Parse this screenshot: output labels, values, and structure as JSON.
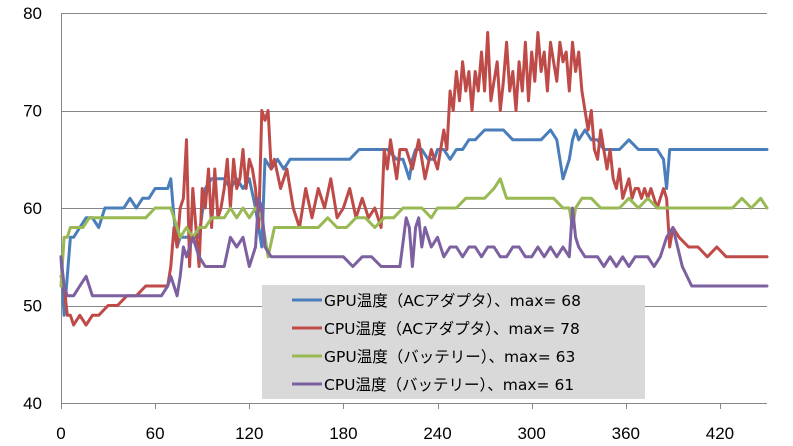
{
  "chart_data": {
    "type": "line",
    "title": "",
    "xlabel": "",
    "ylabel": "",
    "xlim": [
      0,
      450
    ],
    "ylim": [
      40,
      80
    ],
    "x_ticks": [
      0,
      60,
      120,
      180,
      240,
      300,
      360,
      420
    ],
    "y_ticks": [
      40,
      50,
      60,
      70,
      80
    ],
    "grid": "horizontal",
    "legend_position": "bottom-center",
    "series": [
      {
        "name": "GPU温度（ACアダプタ）、max=  68",
        "color": "#4a7ebb",
        "x": [
          0,
          2,
          4,
          6,
          8,
          12,
          16,
          20,
          24,
          28,
          32,
          36,
          40,
          44,
          48,
          52,
          56,
          60,
          64,
          68,
          70,
          72,
          74,
          76,
          80,
          84,
          88,
          92,
          96,
          100,
          104,
          108,
          112,
          116,
          120,
          124,
          126,
          128,
          130,
          134,
          138,
          142,
          146,
          150,
          154,
          160,
          166,
          172,
          178,
          184,
          190,
          196,
          202,
          208,
          214,
          218,
          220,
          222,
          224,
          226,
          230,
          234,
          238,
          240,
          244,
          248,
          252,
          256,
          260,
          264,
          270,
          276,
          282,
          288,
          294,
          300,
          306,
          312,
          316,
          318,
          320,
          322,
          324,
          326,
          328,
          330,
          334,
          338,
          342,
          346,
          350,
          356,
          362,
          368,
          374,
          380,
          384,
          386,
          388,
          392,
          398,
          404,
          410,
          416,
          422,
          428,
          434,
          440,
          446,
          450
        ],
        "values": [
          55,
          49,
          53,
          57,
          57,
          58,
          59,
          59,
          58,
          60,
          60,
          60,
          60,
          61,
          60,
          61,
          61,
          62,
          62,
          62,
          63,
          59,
          56,
          57,
          57,
          57,
          57,
          62,
          63,
          63,
          63,
          62,
          63,
          62,
          63,
          60,
          58,
          56,
          65,
          64,
          65,
          64,
          65,
          65,
          65,
          65,
          65,
          65,
          65,
          65,
          66,
          66,
          66,
          66,
          65,
          65,
          64,
          63,
          65,
          66,
          66,
          65,
          65,
          66,
          66,
          65,
          66,
          66,
          67,
          67,
          68,
          68,
          68,
          67,
          67,
          67,
          67,
          68,
          67,
          65,
          63,
          64,
          65,
          67,
          68,
          67,
          68,
          67,
          67,
          66,
          66,
          66,
          67,
          66,
          66,
          66,
          65,
          62,
          66,
          66,
          66,
          66,
          66,
          66,
          66,
          66,
          66,
          66,
          66,
          66
        ]
      },
      {
        "name": "CPU温度（ACアダプタ）、max=  78",
        "color": "#be4b48",
        "x": [
          0,
          2,
          4,
          6,
          8,
          12,
          16,
          20,
          24,
          30,
          36,
          42,
          48,
          54,
          60,
          64,
          68,
          70,
          72,
          74,
          76,
          78,
          80,
          82,
          84,
          86,
          88,
          90,
          92,
          94,
          96,
          98,
          100,
          102,
          104,
          106,
          108,
          110,
          112,
          114,
          116,
          118,
          120,
          122,
          124,
          126,
          128,
          130,
          132,
          134,
          136,
          140,
          144,
          148,
          152,
          156,
          160,
          164,
          168,
          172,
          176,
          180,
          184,
          188,
          192,
          196,
          200,
          204,
          206,
          208,
          210,
          212,
          214,
          216,
          220,
          224,
          228,
          232,
          236,
          240,
          244,
          246,
          248,
          250,
          252,
          254,
          256,
          258,
          260,
          262,
          264,
          266,
          268,
          270,
          272,
          274,
          276,
          278,
          280,
          282,
          284,
          286,
          288,
          290,
          292,
          294,
          296,
          298,
          300,
          302,
          304,
          306,
          308,
          310,
          312,
          314,
          316,
          318,
          320,
          322,
          324,
          326,
          328,
          330,
          332,
          334,
          336,
          338,
          340,
          342,
          344,
          346,
          348,
          350,
          352,
          354,
          356,
          358,
          360,
          362,
          364,
          366,
          368,
          370,
          372,
          374,
          376,
          378,
          380,
          382,
          384,
          386,
          388,
          390,
          394,
          400,
          406,
          412,
          418,
          424,
          430,
          436,
          442,
          450
        ],
        "values": [
          53,
          52,
          49,
          49,
          48,
          49,
          48,
          49,
          49,
          50,
          50,
          51,
          51,
          52,
          52,
          52,
          52,
          54,
          58,
          56,
          60,
          61,
          67,
          54,
          62,
          58,
          54,
          62,
          60,
          64,
          58,
          64,
          59,
          60,
          62,
          65,
          60,
          65,
          62,
          63,
          66,
          62,
          65,
          64,
          62,
          58,
          70,
          69,
          70,
          64,
          65,
          62,
          64,
          60,
          58,
          62,
          59,
          62,
          60,
          63,
          59,
          60,
          62,
          59,
          61,
          59,
          60,
          58,
          66,
          64,
          67,
          65,
          63,
          66,
          66,
          64,
          67,
          63,
          66,
          64,
          68,
          66,
          72,
          70,
          74,
          71,
          75,
          72,
          74,
          70,
          74,
          72,
          76,
          72,
          78,
          71,
          73,
          75,
          70,
          73,
          77,
          72,
          74,
          70,
          75,
          72,
          77,
          71,
          76,
          73,
          78,
          74,
          76,
          72,
          77,
          75,
          73,
          77,
          75,
          76,
          72,
          77,
          74,
          76,
          72,
          70,
          68,
          70,
          66,
          65,
          68,
          66,
          64,
          66,
          63,
          62,
          64,
          61,
          62,
          63,
          61,
          62,
          62,
          61,
          62,
          61,
          62,
          61,
          60,
          61,
          62,
          61,
          56,
          58,
          57,
          56,
          56,
          55,
          56,
          55,
          55,
          55,
          55,
          55
        ]
      },
      {
        "name": "GPU温度（バッテリー）、max=  63",
        "color": "#98b954",
        "x": [
          0,
          2,
          4,
          6,
          10,
          14,
          18,
          24,
          30,
          36,
          42,
          48,
          54,
          60,
          66,
          70,
          72,
          74,
          76,
          80,
          84,
          88,
          92,
          96,
          100,
          104,
          108,
          112,
          116,
          120,
          124,
          128,
          130,
          132,
          136,
          140,
          146,
          152,
          158,
          164,
          170,
          176,
          182,
          188,
          194,
          200,
          206,
          212,
          218,
          224,
          230,
          236,
          240,
          246,
          252,
          258,
          264,
          270,
          276,
          280,
          282,
          284,
          286,
          290,
          296,
          302,
          308,
          314,
          320,
          324,
          326,
          328,
          332,
          338,
          344,
          350,
          356,
          362,
          368,
          374,
          380,
          386,
          392,
          398,
          404,
          410,
          416,
          422,
          428,
          434,
          440,
          446,
          450
        ],
        "values": [
          52,
          57,
          57,
          58,
          58,
          58,
          59,
          59,
          59,
          59,
          59,
          59,
          59,
          60,
          60,
          60,
          59,
          58,
          57,
          58,
          57,
          58,
          58,
          59,
          59,
          59,
          60,
          59,
          60,
          59,
          60,
          59,
          57,
          55,
          58,
          58,
          58,
          58,
          58,
          58,
          59,
          58,
          58,
          59,
          59,
          58,
          59,
          59,
          60,
          60,
          60,
          59,
          60,
          60,
          60,
          61,
          61,
          61,
          62,
          63,
          62,
          61,
          61,
          61,
          61,
          61,
          61,
          61,
          60,
          60,
          58,
          60,
          61,
          61,
          60,
          60,
          60,
          61,
          60,
          61,
          60,
          60,
          60,
          60,
          60,
          60,
          60,
          60,
          60,
          61,
          60,
          61,
          60
        ]
      },
      {
        "name": "CPU温度（バッテリー）、max=  61",
        "color": "#7d60a0",
        "x": [
          0,
          2,
          4,
          6,
          8,
          12,
          16,
          20,
          24,
          30,
          36,
          42,
          48,
          54,
          60,
          64,
          68,
          70,
          72,
          74,
          76,
          78,
          80,
          84,
          88,
          92,
          96,
          100,
          104,
          108,
          112,
          116,
          120,
          124,
          126,
          128,
          130,
          134,
          138,
          142,
          146,
          150,
          156,
          162,
          168,
          174,
          180,
          186,
          192,
          198,
          204,
          210,
          216,
          220,
          222,
          224,
          226,
          228,
          230,
          232,
          236,
          240,
          244,
          248,
          252,
          256,
          260,
          264,
          268,
          272,
          276,
          280,
          284,
          288,
          292,
          296,
          300,
          304,
          308,
          312,
          316,
          320,
          324,
          326,
          328,
          330,
          334,
          338,
          342,
          346,
          350,
          354,
          358,
          362,
          366,
          370,
          374,
          378,
          382,
          386,
          390,
          396,
          402,
          408,
          414,
          420,
          426,
          432,
          438,
          444,
          450
        ],
        "values": [
          55,
          52,
          51,
          51,
          51,
          52,
          53,
          51,
          51,
          51,
          51,
          51,
          51,
          51,
          51,
          51,
          52,
          53,
          52,
          51,
          53,
          56,
          55,
          57,
          55,
          54,
          54,
          54,
          54,
          57,
          56,
          57,
          54,
          56,
          61,
          60,
          56,
          55,
          55,
          55,
          55,
          55,
          55,
          55,
          55,
          55,
          55,
          54,
          55,
          55,
          54,
          54,
          54,
          59,
          58,
          54,
          58,
          59,
          56,
          58,
          56,
          57,
          55,
          56,
          56,
          55,
          56,
          56,
          55,
          56,
          56,
          55,
          55,
          56,
          56,
          55,
          55,
          56,
          55,
          56,
          55,
          56,
          55,
          60,
          57,
          56,
          55,
          55,
          55,
          54,
          55,
          54,
          55,
          54,
          55,
          55,
          55,
          54,
          55,
          57,
          58,
          54,
          52,
          52,
          52,
          52,
          52,
          52,
          52,
          52,
          52
        ]
      }
    ]
  }
}
